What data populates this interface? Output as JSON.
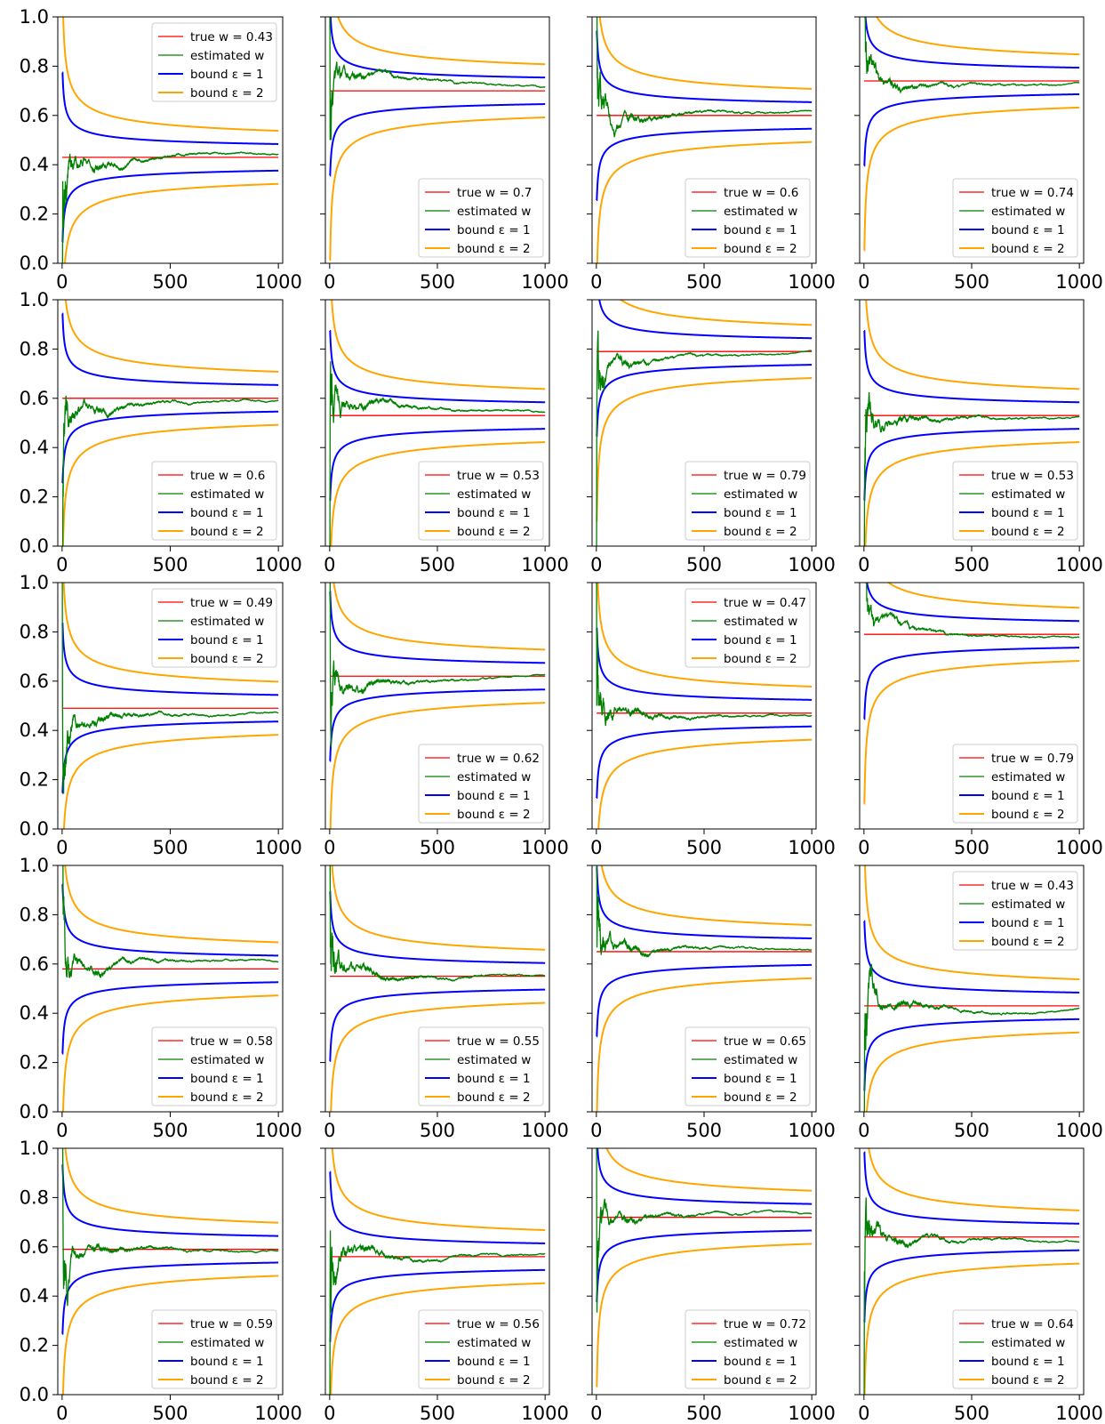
{
  "chart_data": {
    "type": "line",
    "layout": "grid of 5 rows x 4 columns, shared y axis per row",
    "xlim": [
      -20,
      1020
    ],
    "ylim": [
      0.0,
      1.0
    ],
    "x_ticks": [
      0,
      500,
      1000
    ],
    "x_tick_labels": [
      "0",
      "500",
      "1000"
    ],
    "y_ticks": [
      0.0,
      0.2,
      0.4,
      0.6,
      0.8,
      1.0
    ],
    "y_tick_labels": [
      "0.0",
      "0.2",
      "0.4",
      "0.6",
      "0.8",
      "1.0"
    ],
    "n_steps": 1000,
    "series_style": {
      "true": {
        "label_prefix": "true w = ",
        "color": "#ff0000"
      },
      "estimated": {
        "label": "estimated w",
        "color": "#008000"
      },
      "bound1": {
        "label": "bound ε = 1",
        "color": "#0000ff",
        "eps": 1
      },
      "bound2": {
        "label": "bound ε = 2",
        "color": "#ffa500",
        "eps": 2
      }
    },
    "panels": [
      {
        "true_w": 0.43,
        "true_label": "true w = 0.43",
        "legend": "upper-right"
      },
      {
        "true_w": 0.7,
        "true_label": "true w = 0.7",
        "legend": "lower-right"
      },
      {
        "true_w": 0.6,
        "true_label": "true w = 0.6",
        "legend": "lower-right"
      },
      {
        "true_w": 0.74,
        "true_label": "true w = 0.74",
        "legend": "lower-right"
      },
      {
        "true_w": 0.6,
        "true_label": "true w = 0.6",
        "legend": "lower-right"
      },
      {
        "true_w": 0.53,
        "true_label": "true w = 0.53",
        "legend": "lower-right"
      },
      {
        "true_w": 0.79,
        "true_label": "true w = 0.79",
        "legend": "lower-right"
      },
      {
        "true_w": 0.53,
        "true_label": "true w = 0.53",
        "legend": "lower-right"
      },
      {
        "true_w": 0.49,
        "true_label": "true w = 0.49",
        "legend": "upper-right"
      },
      {
        "true_w": 0.62,
        "true_label": "true w = 0.62",
        "legend": "lower-right"
      },
      {
        "true_w": 0.47,
        "true_label": "true w = 0.47",
        "legend": "upper-right"
      },
      {
        "true_w": 0.79,
        "true_label": "true w = 0.79",
        "legend": "lower-right"
      },
      {
        "true_w": 0.58,
        "true_label": "true w = 0.58",
        "legend": "lower-right"
      },
      {
        "true_w": 0.55,
        "true_label": "true w = 0.55",
        "legend": "lower-right"
      },
      {
        "true_w": 0.65,
        "true_label": "true w = 0.65",
        "legend": "lower-right"
      },
      {
        "true_w": 0.43,
        "true_label": "true w = 0.43",
        "legend": "upper-right"
      },
      {
        "true_w": 0.59,
        "true_label": "true w = 0.59",
        "legend": "lower-right"
      },
      {
        "true_w": 0.56,
        "true_label": "true w = 0.56",
        "legend": "lower-right"
      },
      {
        "true_w": 0.72,
        "true_label": "true w = 0.72",
        "legend": "lower-right"
      },
      {
        "true_w": 0.64,
        "true_label": "true w = 0.64",
        "legend": "lower-right"
      }
    ]
  }
}
